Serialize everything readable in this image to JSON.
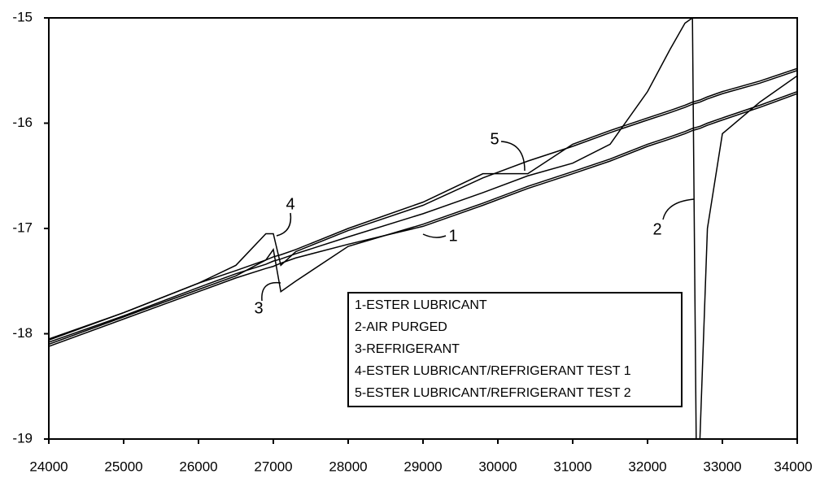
{
  "chart_data": {
    "type": "line",
    "x": [
      24000,
      25000,
      26000,
      26500,
      26900,
      27000,
      27100,
      27300,
      28000,
      29000,
      29800,
      30400,
      31000,
      31500,
      32000,
      32300,
      32500,
      32600,
      32650,
      32700,
      32800,
      33000,
      33500,
      34000
    ],
    "series": [
      {
        "name": "1-ESTER LUBRICANT",
        "color": "#000000",
        "values": [
          -18.12,
          -17.86,
          -17.6,
          -17.47,
          -17.38,
          -17.36,
          -17.33,
          -17.28,
          -17.15,
          -16.98,
          -16.78,
          -16.62,
          -16.48,
          -16.36,
          -16.22,
          -16.15,
          -16.1,
          -16.07,
          -16.06,
          -16.05,
          -16.02,
          -15.97,
          -15.85,
          -15.72
        ]
      },
      {
        "name": "2-AIR PURGED",
        "color": "#000000",
        "values": [
          -18.08,
          -17.83,
          -17.56,
          -17.43,
          -17.34,
          -17.31,
          -17.29,
          -17.24,
          -17.08,
          -16.86,
          -16.66,
          -16.5,
          -16.38,
          -16.2,
          -15.7,
          -15.3,
          -15.05,
          -15.0,
          -19.0,
          -19.0,
          -17.0,
          -16.1,
          -15.8,
          -15.55
        ]
      },
      {
        "name": "3-REFRIGERANT",
        "color": "#000000",
        "values": [
          -18.1,
          -17.84,
          -17.58,
          -17.45,
          -17.3,
          -17.2,
          -17.6,
          -17.5,
          -17.17,
          -16.96,
          -16.76,
          -16.6,
          -16.46,
          -16.34,
          -16.2,
          -16.13,
          -16.08,
          -16.05,
          -16.04,
          -16.03,
          -16.0,
          -15.95,
          -15.83,
          -15.7
        ]
      },
      {
        "name": "4-ESTER LUBRICANT/REFRIGERANT TEST 1",
        "color": "#000000",
        "values": [
          -18.06,
          -17.8,
          -17.52,
          -17.35,
          -17.05,
          -17.05,
          -17.35,
          -17.22,
          -17.02,
          -16.78,
          -16.52,
          -16.36,
          -16.22,
          -16.09,
          -15.97,
          -15.9,
          -15.85,
          -15.82,
          -15.81,
          -15.8,
          -15.77,
          -15.72,
          -15.62,
          -15.5
        ]
      },
      {
        "name": "5-ESTER LUBRICANT/REFRIGERANT TEST 2",
        "color": "#000000",
        "values": [
          -18.05,
          -17.8,
          -17.52,
          -17.4,
          -17.3,
          -17.27,
          -17.25,
          -17.2,
          -17.0,
          -16.75,
          -16.48,
          -16.48,
          -16.2,
          -16.07,
          -15.95,
          -15.88,
          -15.83,
          -15.8,
          -15.79,
          -15.78,
          -15.75,
          -15.7,
          -15.6,
          -15.48
        ]
      }
    ],
    "xlim": [
      24000,
      34000
    ],
    "xticks": [
      24000,
      25000,
      26000,
      27000,
      28000,
      29000,
      30000,
      31000,
      32000,
      33000,
      34000
    ],
    "ylim": [
      -19,
      -15
    ],
    "yticks": [
      -19,
      -18,
      -17,
      -16,
      -15
    ],
    "annotations": [
      "1",
      "2",
      "3",
      "4",
      "5"
    ],
    "legend": "lower-center"
  }
}
